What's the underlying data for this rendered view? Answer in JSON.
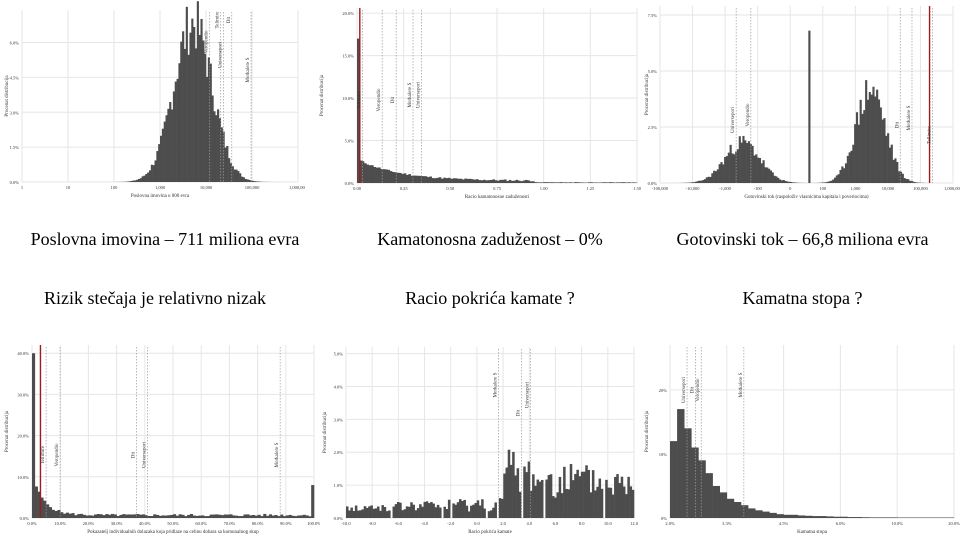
{
  "captions": {
    "assets": "Poslovna imovina – 711 miliona evra",
    "leverage": "Kamatonosna zaduženost – 0%",
    "cashflow": "Gotovinski tok – 66,8 miliona evra",
    "risk": "Rizik stečaja je relativno nizak",
    "coverage": "Racio pokrića kamate ?",
    "rate": "Kamatna stopa ?"
  },
  "colors": {
    "bar": "#4d4d4d",
    "marker": "#9e1b1b",
    "grid": "#e6e6e6",
    "ref": "#9a9a9a"
  },
  "chart_data": [
    {
      "id": "assets",
      "type": "bar",
      "xlabel": "Poslovna imovina u 000 evra",
      "ylabel": "Procenat distribucija",
      "xscale": "log",
      "xticks": [
        "1",
        "10",
        "100",
        "1,000",
        "10,000",
        "100,000",
        "1,000,000"
      ],
      "yticks": [
        "0.0%",
        "1.5%",
        "3.0%",
        "4.5%",
        "6.0%"
      ],
      "ylim": [
        0,
        7.4
      ],
      "peak_x": "10,000",
      "peak_y": 7.0,
      "reference_labels": [
        "Telimire",
        "Dit",
        "Veropendio",
        "Universepori",
        "Morkalere S"
      ],
      "highlight": null
    },
    {
      "id": "leverage",
      "type": "bar",
      "xlabel": "Racio kamatonosne zaduženosti",
      "ylabel": "Procenat distribucija",
      "xticks": [
        "0.00",
        "0.25",
        "0.50",
        "0.75",
        "1.00",
        "1.25",
        "1.50"
      ],
      "yticks": [
        "0.0%",
        "5.0%",
        "10.0%",
        "15.0%",
        "20.0%"
      ],
      "ylim": [
        0,
        20.6
      ],
      "first_bar": 17.0,
      "reference_labels": [
        "Tellimire",
        "Veropendio",
        "Dit",
        "Morkalere S",
        "Universepori"
      ],
      "highlight": "0.00"
    },
    {
      "id": "cashflow",
      "type": "bar",
      "xlabel": "Gotovinski tok (raspoloživ vlasnicima kapitala i poveriocima)",
      "ylabel": "Procenat distribucija",
      "xticks": [
        "-100,000",
        "-10,000",
        "-1,000",
        "-100",
        "0",
        "100",
        "1,000",
        "10,000",
        "100,000",
        "1,000,000"
      ],
      "yticks": [
        "0.0%",
        "2.5%",
        "5.0%",
        "7.5%"
      ],
      "ylim": [
        0,
        7.9
      ],
      "center_spike": 6.8,
      "reference_labels": [
        "Universepori",
        "Veropendio",
        "Dit",
        "Morkalere S",
        "Tellimire"
      ],
      "highlight": "100,000"
    },
    {
      "id": "risk",
      "type": "bar",
      "xlabel": "Pokazatelj individualnih dolazaka koja pridlaze na celinu dobara sa komunalnog skup",
      "ylabel": "Procenat distribucija",
      "xticks": [
        "0.0%",
        "10.0%",
        "20.0%",
        "30.0%",
        "40.0%",
        "50.0%",
        "60.0%",
        "70.0%",
        "80.0%",
        "90.0%",
        "100.0%"
      ],
      "yticks": [
        "0.0%",
        "10.0%",
        "20.0%",
        "30.0%",
        "40.0%"
      ],
      "ylim": [
        0,
        42
      ],
      "first_bar": 40.0,
      "last_bar": 8.0,
      "reference_labels": [
        "Tellimire",
        "Veropendio",
        "Dit",
        "Universepori",
        "Morkalere S"
      ],
      "highlight": "3.0%"
    },
    {
      "id": "coverage",
      "type": "bar",
      "xlabel": "Racio pokrića kamate",
      "ylabel": "Procenat distribucija",
      "xticks": [
        "-10.0",
        "-8.0",
        "-6.0",
        "-4.0",
        "-2.0",
        "0.0",
        "2.0",
        "4.0",
        "6.0",
        "8.0",
        "10.0",
        "12.0"
      ],
      "yticks": [
        "0.0%",
        "1.0%",
        "2.0%",
        "3.0%",
        "4.0%",
        "5.0%"
      ],
      "ylim": [
        0,
        5.2
      ],
      "reference_labels": [
        "Morkalere S",
        "Dit",
        "Universepori"
      ],
      "highlight": null
    },
    {
      "id": "rate",
      "type": "bar",
      "xlabel": "Kamatna stopa",
      "ylabel": "Procenat distribucija",
      "xticks": [
        "2.0%",
        "3.3%",
        "4.5%",
        "6.0%",
        "10.0%",
        "20.0%"
      ],
      "yticks": [
        "0%",
        "10%",
        "20%"
      ],
      "ylim": [
        0,
        27
      ],
      "peak_y": 17.0,
      "reference_labels": [
        "Universepori",
        "Dit",
        "Veropendio",
        "Morkalere S"
      ],
      "highlight": null
    }
  ]
}
